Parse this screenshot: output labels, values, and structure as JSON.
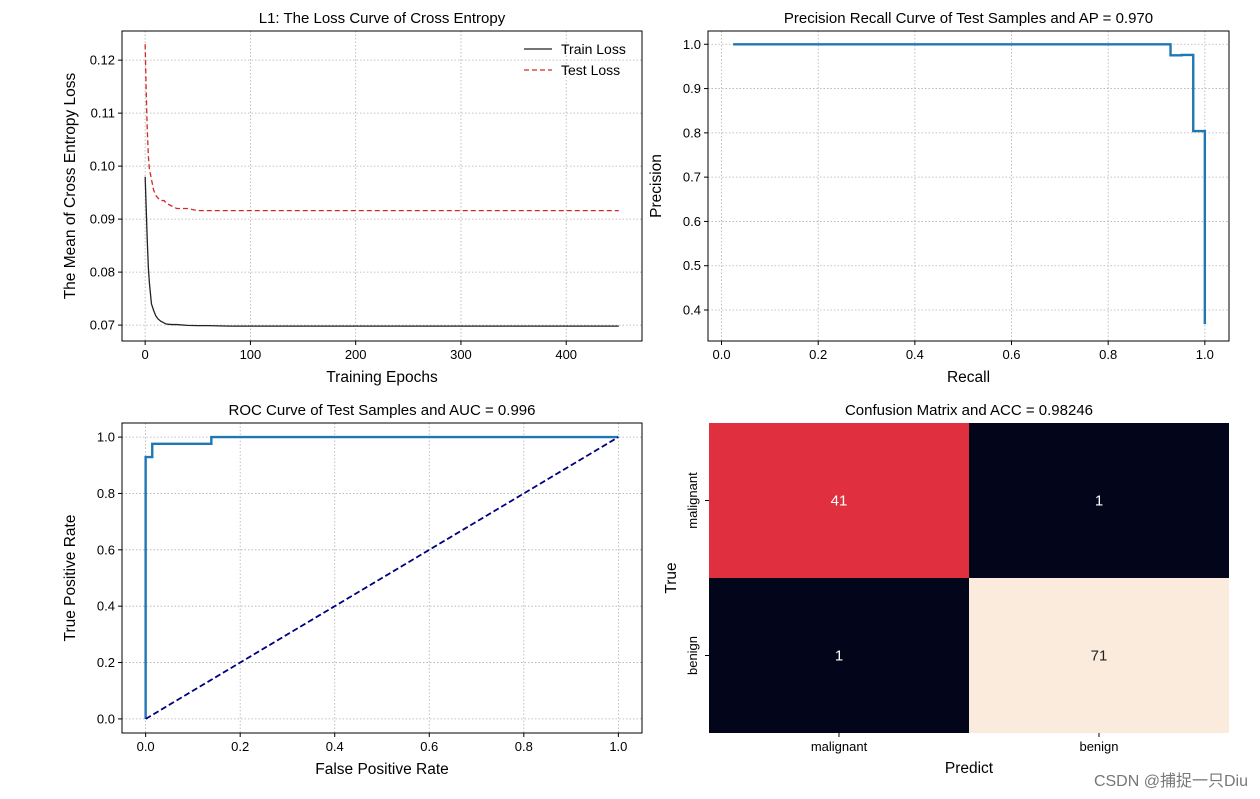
{
  "watermark": "CSDN @捕捉一只Diu",
  "colors": {
    "train": "#222222",
    "test": "#d62728",
    "curve": "#1f77b4",
    "diag": "#000080",
    "heat_high": "#e03040",
    "heat_low": "#03051a",
    "heat_max": "#faebdd"
  },
  "chart_data": [
    {
      "id": "loss",
      "type": "line",
      "title": "L1: The Loss Curve of Cross Entropy",
      "xlabel": "Training Epochs",
      "ylabel": "The Mean of Cross Entropy Loss",
      "xlim": [
        -22,
        472
      ],
      "ylim": [
        0.067,
        0.1255
      ],
      "xticks": [
        0,
        100,
        200,
        300,
        400
      ],
      "yticks": [
        0.07,
        0.08,
        0.09,
        0.1,
        0.11,
        0.12
      ],
      "ytick_labels": [
        "0.07",
        "0.08",
        "0.09",
        "0.10",
        "0.11",
        "0.12"
      ],
      "grid": true,
      "legend": "upper-right",
      "series": [
        {
          "name": "Train Loss",
          "style": "solid",
          "x": [
            0,
            1,
            2,
            3,
            4,
            5,
            6,
            8,
            10,
            12,
            15,
            18,
            20,
            25,
            30,
            40,
            50,
            60,
            80,
            100,
            150,
            200,
            300,
            400,
            450
          ],
          "y": [
            0.098,
            0.092,
            0.086,
            0.081,
            0.078,
            0.076,
            0.074,
            0.0728,
            0.0718,
            0.0712,
            0.0707,
            0.0704,
            0.0702,
            0.0701,
            0.0701,
            0.06995,
            0.0699,
            0.0699,
            0.0698,
            0.0698,
            0.0698,
            0.0698,
            0.0698,
            0.0698,
            0.0698
          ]
        },
        {
          "name": "Test Loss",
          "style": "dashed",
          "x": [
            0,
            1,
            2,
            3,
            4,
            5,
            6,
            7,
            8,
            10,
            12,
            15,
            18,
            20,
            25,
            30,
            40,
            50,
            60,
            80,
            100,
            200,
            300,
            400,
            450
          ],
          "y": [
            0.123,
            0.114,
            0.107,
            0.102,
            0.0995,
            0.0985,
            0.0975,
            0.0965,
            0.0955,
            0.0945,
            0.094,
            0.0935,
            0.0935,
            0.093,
            0.0925,
            0.092,
            0.092,
            0.0916,
            0.0916,
            0.0916,
            0.0916,
            0.0916,
            0.0916,
            0.0916,
            0.0916
          ]
        }
      ]
    },
    {
      "id": "pr",
      "type": "line",
      "title": "Precision Recall Curve of Test Samples and AP = 0.970",
      "xlabel": "Recall",
      "ylabel": "Precision",
      "xlim": [
        -0.028,
        1.05
      ],
      "ylim": [
        0.33,
        1.03
      ],
      "xticks": [
        0,
        0.2,
        0.4,
        0.6,
        0.8,
        1.0
      ],
      "xtick_labels": [
        "0.0",
        "0.2",
        "0.4",
        "0.6",
        "0.8",
        "1.0"
      ],
      "yticks": [
        0.4,
        0.5,
        0.6,
        0.7,
        0.8,
        0.9,
        1.0
      ],
      "ytick_labels": [
        "0.4",
        "0.5",
        "0.6",
        "0.7",
        "0.8",
        "0.9",
        "1.0"
      ],
      "grid": true,
      "series": [
        {
          "style": "step",
          "x": [
            0.024,
            0.929,
            0.929,
            0.952,
            0.952,
            0.976,
            0.976,
            1.0,
            1.0
          ],
          "y": [
            1.0,
            1.0,
            0.975,
            0.975,
            0.976,
            0.976,
            0.804,
            0.804,
            0.368
          ]
        }
      ]
    },
    {
      "id": "roc",
      "type": "line",
      "title": "ROC Curve of Test Samples and AUC = 0.996",
      "xlabel": "False Positive Rate",
      "ylabel": "True Positive Rate",
      "xlim": [
        -0.05,
        1.05
      ],
      "ylim": [
        -0.05,
        1.05
      ],
      "xticks": [
        0,
        0.2,
        0.4,
        0.6,
        0.8,
        1.0
      ],
      "xtick_labels": [
        "0.0",
        "0.2",
        "0.4",
        "0.6",
        "0.8",
        "1.0"
      ],
      "yticks": [
        0,
        0.2,
        0.4,
        0.6,
        0.8,
        1.0
      ],
      "ytick_labels": [
        "0.0",
        "0.2",
        "0.4",
        "0.6",
        "0.8",
        "1.0"
      ],
      "grid": true,
      "series": [
        {
          "style": "step",
          "x": [
            0.0,
            0.0,
            0.0,
            0.014,
            0.014,
            0.139,
            0.139,
            1.0
          ],
          "y": [
            0.0,
            0.024,
            0.929,
            0.929,
            0.976,
            0.976,
            1.0,
            1.0
          ]
        },
        {
          "style": "dashed",
          "x": [
            0.0,
            1.0
          ],
          "y": [
            0.0,
            1.0
          ]
        }
      ]
    },
    {
      "id": "cm",
      "type": "heatmap",
      "title": "Confusion Matrix and ACC = 0.98246",
      "xlabel": "Predict",
      "ylabel": "True",
      "x_categories": [
        "malignant",
        "benign"
      ],
      "y_categories": [
        "malignant",
        "benign"
      ],
      "values": [
        [
          41,
          1
        ],
        [
          1,
          71
        ]
      ]
    }
  ]
}
